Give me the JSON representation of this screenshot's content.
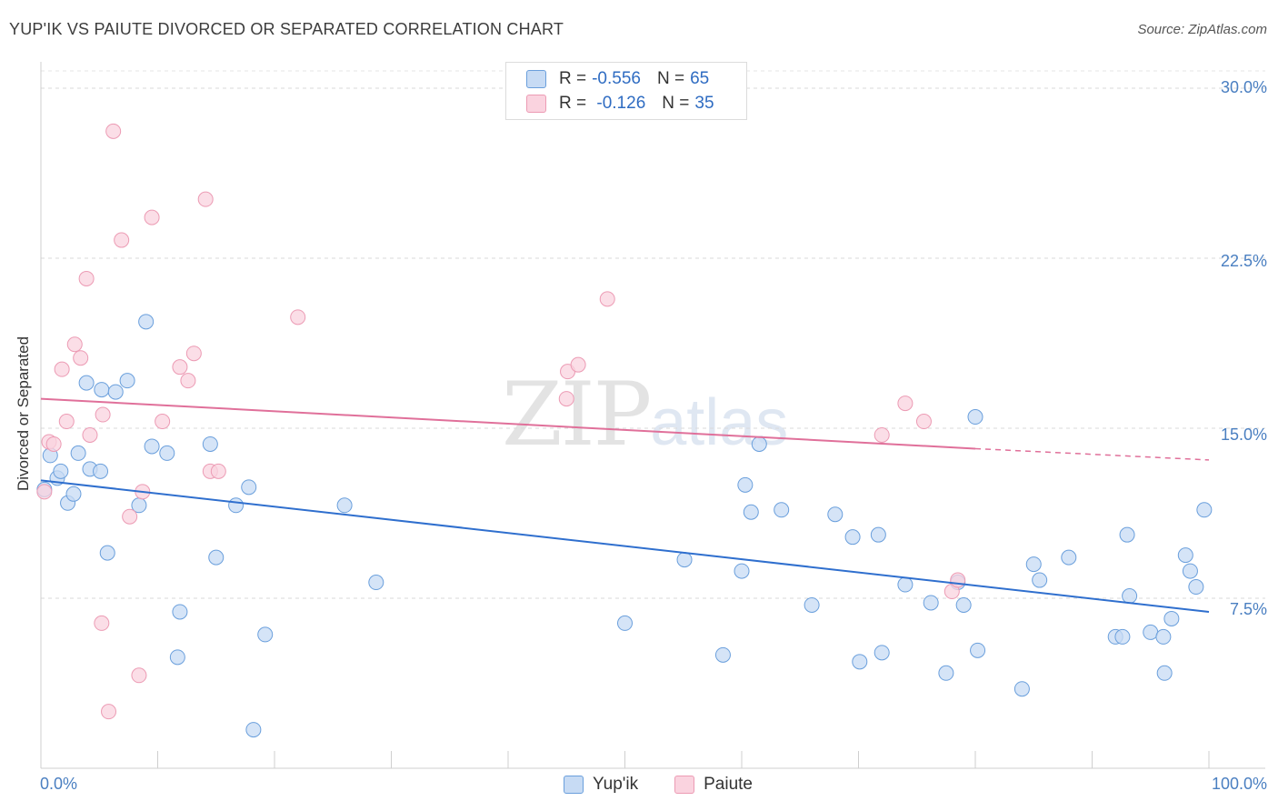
{
  "title": "YUP'IK VS PAIUTE DIVORCED OR SEPARATED CORRELATION CHART",
  "source": "Source: ZipAtlas.com",
  "watermark": {
    "zip": "ZIP",
    "atlas": "atlas"
  },
  "legend": {
    "rows": [
      {
        "r_label": "R = ",
        "r_value": "-0.556",
        "n_label": "N = ",
        "n_value": "65",
        "color": "#b9d3f3"
      },
      {
        "r_label": "R = ",
        "r_value": " -0.126",
        "n_label": "N = ",
        "n_value": "35",
        "color": "#f9c4d3"
      }
    ]
  },
  "bottom_legend": [
    {
      "label": "Yup'ik",
      "color": "#b9d3f3"
    },
    {
      "label": "Paiute",
      "color": "#f9c4d3"
    }
  ],
  "chart_data": {
    "type": "scatter",
    "title": "YUP'IK VS PAIUTE DIVORCED OR SEPARATED CORRELATION CHART",
    "xlabel": "",
    "ylabel": "Divorced or Separated",
    "xlim": [
      0,
      100
    ],
    "ylim": [
      0,
      31
    ],
    "x_tick_labels": [
      "0.0%",
      "100.0%"
    ],
    "y_ticks": [
      7.5,
      15.0,
      22.5,
      30.0
    ],
    "y_tick_labels": [
      "7.5%",
      "15.0%",
      "22.5%",
      "30.0%"
    ],
    "series": [
      {
        "name": "Yup'ik",
        "color": "#6a9fdc",
        "fill": "#c7dbf4",
        "trend": {
          "x0": 0,
          "y0": 12.7,
          "x1": 100,
          "y1": 6.9,
          "color": "#2f6fce"
        },
        "points": [
          [
            0.3,
            12.3
          ],
          [
            0.8,
            13.8
          ],
          [
            1.4,
            12.8
          ],
          [
            1.7,
            13.1
          ],
          [
            2.3,
            11.7
          ],
          [
            2.8,
            12.1
          ],
          [
            3.2,
            13.9
          ],
          [
            3.9,
            17.0
          ],
          [
            4.2,
            13.2
          ],
          [
            5.1,
            13.1
          ],
          [
            5.2,
            16.7
          ],
          [
            5.7,
            9.5
          ],
          [
            6.4,
            16.6
          ],
          [
            7.4,
            17.1
          ],
          [
            8.4,
            11.6
          ],
          [
            9.0,
            19.7
          ],
          [
            9.5,
            14.2
          ],
          [
            10.8,
            13.9
          ],
          [
            11.7,
            4.9
          ],
          [
            11.9,
            6.9
          ],
          [
            14.5,
            14.3
          ],
          [
            15.0,
            9.3
          ],
          [
            16.7,
            11.6
          ],
          [
            17.8,
            12.4
          ],
          [
            18.2,
            1.7
          ],
          [
            19.2,
            5.9
          ],
          [
            26.0,
            11.6
          ],
          [
            28.7,
            8.2
          ],
          [
            50.0,
            6.4
          ],
          [
            55.1,
            9.2
          ],
          [
            58.4,
            5.0
          ],
          [
            60.0,
            8.7
          ],
          [
            60.3,
            12.5
          ],
          [
            60.8,
            11.3
          ],
          [
            61.5,
            14.3
          ],
          [
            63.4,
            11.4
          ],
          [
            66.0,
            7.2
          ],
          [
            68.0,
            11.2
          ],
          [
            69.5,
            10.2
          ],
          [
            70.1,
            4.7
          ],
          [
            71.7,
            10.3
          ],
          [
            72.0,
            5.1
          ],
          [
            74.0,
            8.1
          ],
          [
            76.2,
            7.3
          ],
          [
            77.5,
            4.2
          ],
          [
            78.5,
            8.2
          ],
          [
            79.0,
            7.2
          ],
          [
            80.0,
            15.5
          ],
          [
            80.2,
            5.2
          ],
          [
            84.0,
            3.5
          ],
          [
            85.0,
            9.0
          ],
          [
            85.5,
            8.3
          ],
          [
            88.0,
            9.3
          ],
          [
            92.0,
            5.8
          ],
          [
            92.6,
            5.8
          ],
          [
            93.0,
            10.3
          ],
          [
            93.2,
            7.6
          ],
          [
            95.0,
            6.0
          ],
          [
            96.1,
            5.8
          ],
          [
            96.2,
            4.2
          ],
          [
            96.8,
            6.6
          ],
          [
            98.0,
            9.4
          ],
          [
            98.4,
            8.7
          ],
          [
            98.9,
            8.0
          ],
          [
            99.6,
            11.4
          ]
        ]
      },
      {
        "name": "Paiute",
        "color": "#ec9bb4",
        "fill": "#fad3df",
        "trend": {
          "x0": 0,
          "y0": 16.3,
          "x1": 80,
          "y1": 14.1,
          "color": "#e0709a",
          "dashed_to_x": 100,
          "dashed_to_y": 13.6
        },
        "points": [
          [
            0.3,
            12.2
          ],
          [
            0.7,
            14.4
          ],
          [
            1.1,
            14.3
          ],
          [
            1.8,
            17.6
          ],
          [
            2.2,
            15.3
          ],
          [
            2.9,
            18.7
          ],
          [
            3.4,
            18.1
          ],
          [
            3.9,
            21.6
          ],
          [
            4.2,
            14.7
          ],
          [
            5.2,
            6.4
          ],
          [
            5.3,
            15.6
          ],
          [
            5.8,
            2.5
          ],
          [
            6.2,
            28.1
          ],
          [
            6.9,
            23.3
          ],
          [
            7.6,
            11.1
          ],
          [
            8.4,
            4.1
          ],
          [
            8.7,
            12.2
          ],
          [
            9.5,
            24.3
          ],
          [
            10.4,
            15.3
          ],
          [
            11.9,
            17.7
          ],
          [
            12.6,
            17.1
          ],
          [
            13.1,
            18.3
          ],
          [
            14.1,
            25.1
          ],
          [
            14.5,
            13.1
          ],
          [
            15.2,
            13.1
          ],
          [
            22.0,
            19.9
          ],
          [
            45.0,
            16.3
          ],
          [
            45.1,
            17.5
          ],
          [
            46.0,
            17.8
          ],
          [
            48.5,
            20.7
          ],
          [
            72.0,
            14.7
          ],
          [
            74.0,
            16.1
          ],
          [
            75.6,
            15.3
          ],
          [
            78.0,
            7.8
          ],
          [
            78.5,
            8.3
          ]
        ]
      }
    ]
  }
}
